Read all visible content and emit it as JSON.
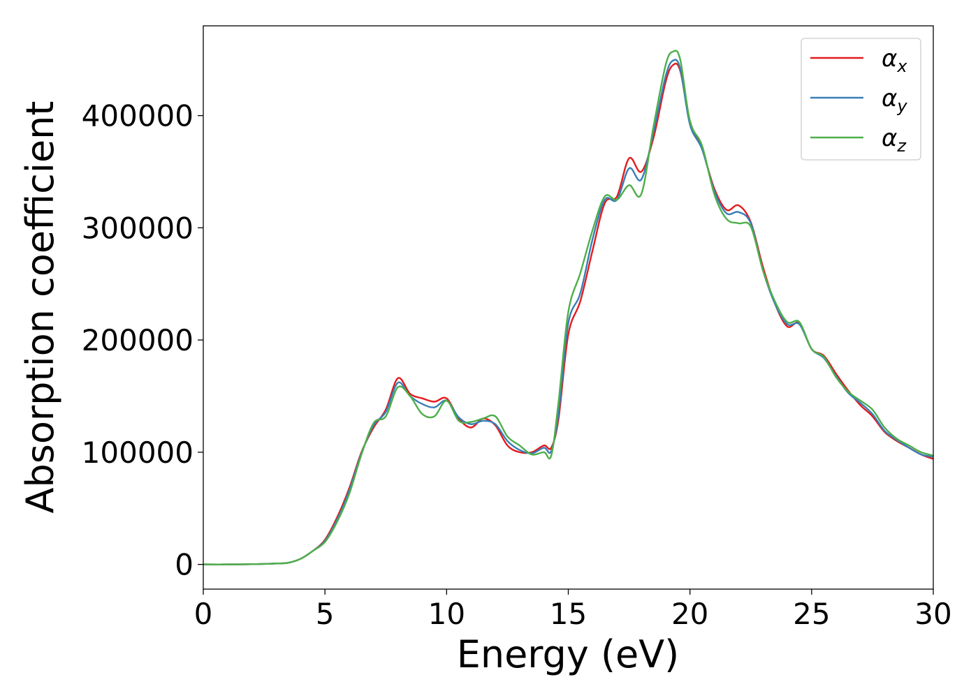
{
  "chart_data": {
    "type": "line",
    "title": "",
    "xlabel": "Energy (eV)",
    "ylabel": "Absorption coefficient",
    "xlim": [
      0,
      30
    ],
    "ylim": [
      -22000,
      480000
    ],
    "xticks": [
      0,
      5,
      10,
      15,
      20,
      25,
      30
    ],
    "yticks": [
      0,
      100000,
      200000,
      300000,
      400000
    ],
    "xtick_labels": [
      "0",
      "5",
      "10",
      "15",
      "20",
      "25",
      "30"
    ],
    "ytick_labels": [
      "0",
      "100000",
      "200000",
      "300000",
      "400000"
    ],
    "grid": false,
    "legend_position": "top-right",
    "x": [
      0,
      1,
      2,
      3,
      3.5,
      4,
      4.5,
      5,
      5.5,
      6,
      6.5,
      7,
      7.5,
      8,
      8.5,
      9,
      9.5,
      10,
      10.5,
      11,
      11.5,
      12,
      12.5,
      13,
      13.5,
      14,
      14.3,
      14.6,
      15,
      15.5,
      16,
      16.5,
      17,
      17.5,
      18,
      18.5,
      19,
      19.3,
      19.6,
      20,
      20.5,
      21,
      21.5,
      22,
      22.5,
      23,
      23.5,
      24,
      24.5,
      25,
      25.5,
      26,
      26.5,
      27,
      27.5,
      28,
      28.5,
      29,
      29.5,
      30
    ],
    "series": [
      {
        "name": "α",
        "subscript": "x",
        "color": "#e41a1c",
        "values": [
          0,
          0,
          200,
          800,
          1500,
          5000,
          12000,
          22000,
          42000,
          68000,
          100000,
          122000,
          138000,
          166000,
          152000,
          148000,
          145000,
          148000,
          130000,
          122000,
          130000,
          124000,
          106000,
          100000,
          100000,
          106000,
          104000,
          130000,
          205000,
          235000,
          280000,
          322000,
          328000,
          362000,
          350000,
          380000,
          430000,
          445000,
          440000,
          395000,
          370000,
          335000,
          316000,
          320000,
          305000,
          265000,
          232000,
          212000,
          215000,
          192000,
          186000,
          170000,
          155000,
          142000,
          132000,
          118000,
          110000,
          104000,
          98000,
          94000
        ]
      },
      {
        "name": "α",
        "subscript": "y",
        "color": "#377eb8",
        "values": [
          0,
          0,
          200,
          800,
          1500,
          5000,
          12000,
          21000,
          40000,
          66000,
          99000,
          124000,
          136000,
          162000,
          150000,
          143000,
          140000,
          146000,
          131000,
          125000,
          128000,
          125000,
          110000,
          102000,
          99000,
          104000,
          101000,
          135000,
          215000,
          242000,
          290000,
          325000,
          325000,
          353000,
          343000,
          385000,
          435000,
          449000,
          442000,
          392000,
          370000,
          333000,
          313000,
          314000,
          304000,
          262000,
          232000,
          214000,
          214000,
          192000,
          184000,
          168000,
          153000,
          144000,
          134000,
          119000,
          111000,
          104000,
          98000,
          96000
        ]
      },
      {
        "name": "α",
        "subscript": "z",
        "color": "#4daf4a",
        "values": [
          0,
          0,
          200,
          800,
          1500,
          5000,
          12000,
          20000,
          38000,
          63000,
          98000,
          126000,
          132000,
          158000,
          150000,
          134000,
          132000,
          146000,
          128000,
          127000,
          130000,
          132000,
          114000,
          106000,
          98000,
          100000,
          97000,
          145000,
          225000,
          260000,
          298000,
          328000,
          325000,
          338000,
          330000,
          390000,
          445000,
          457000,
          450000,
          395000,
          373000,
          330000,
          308000,
          304000,
          301000,
          262000,
          234000,
          216000,
          216000,
          192000,
          185000,
          167000,
          154000,
          146000,
          138000,
          122000,
          112000,
          106000,
          100000,
          97000
        ]
      }
    ]
  }
}
